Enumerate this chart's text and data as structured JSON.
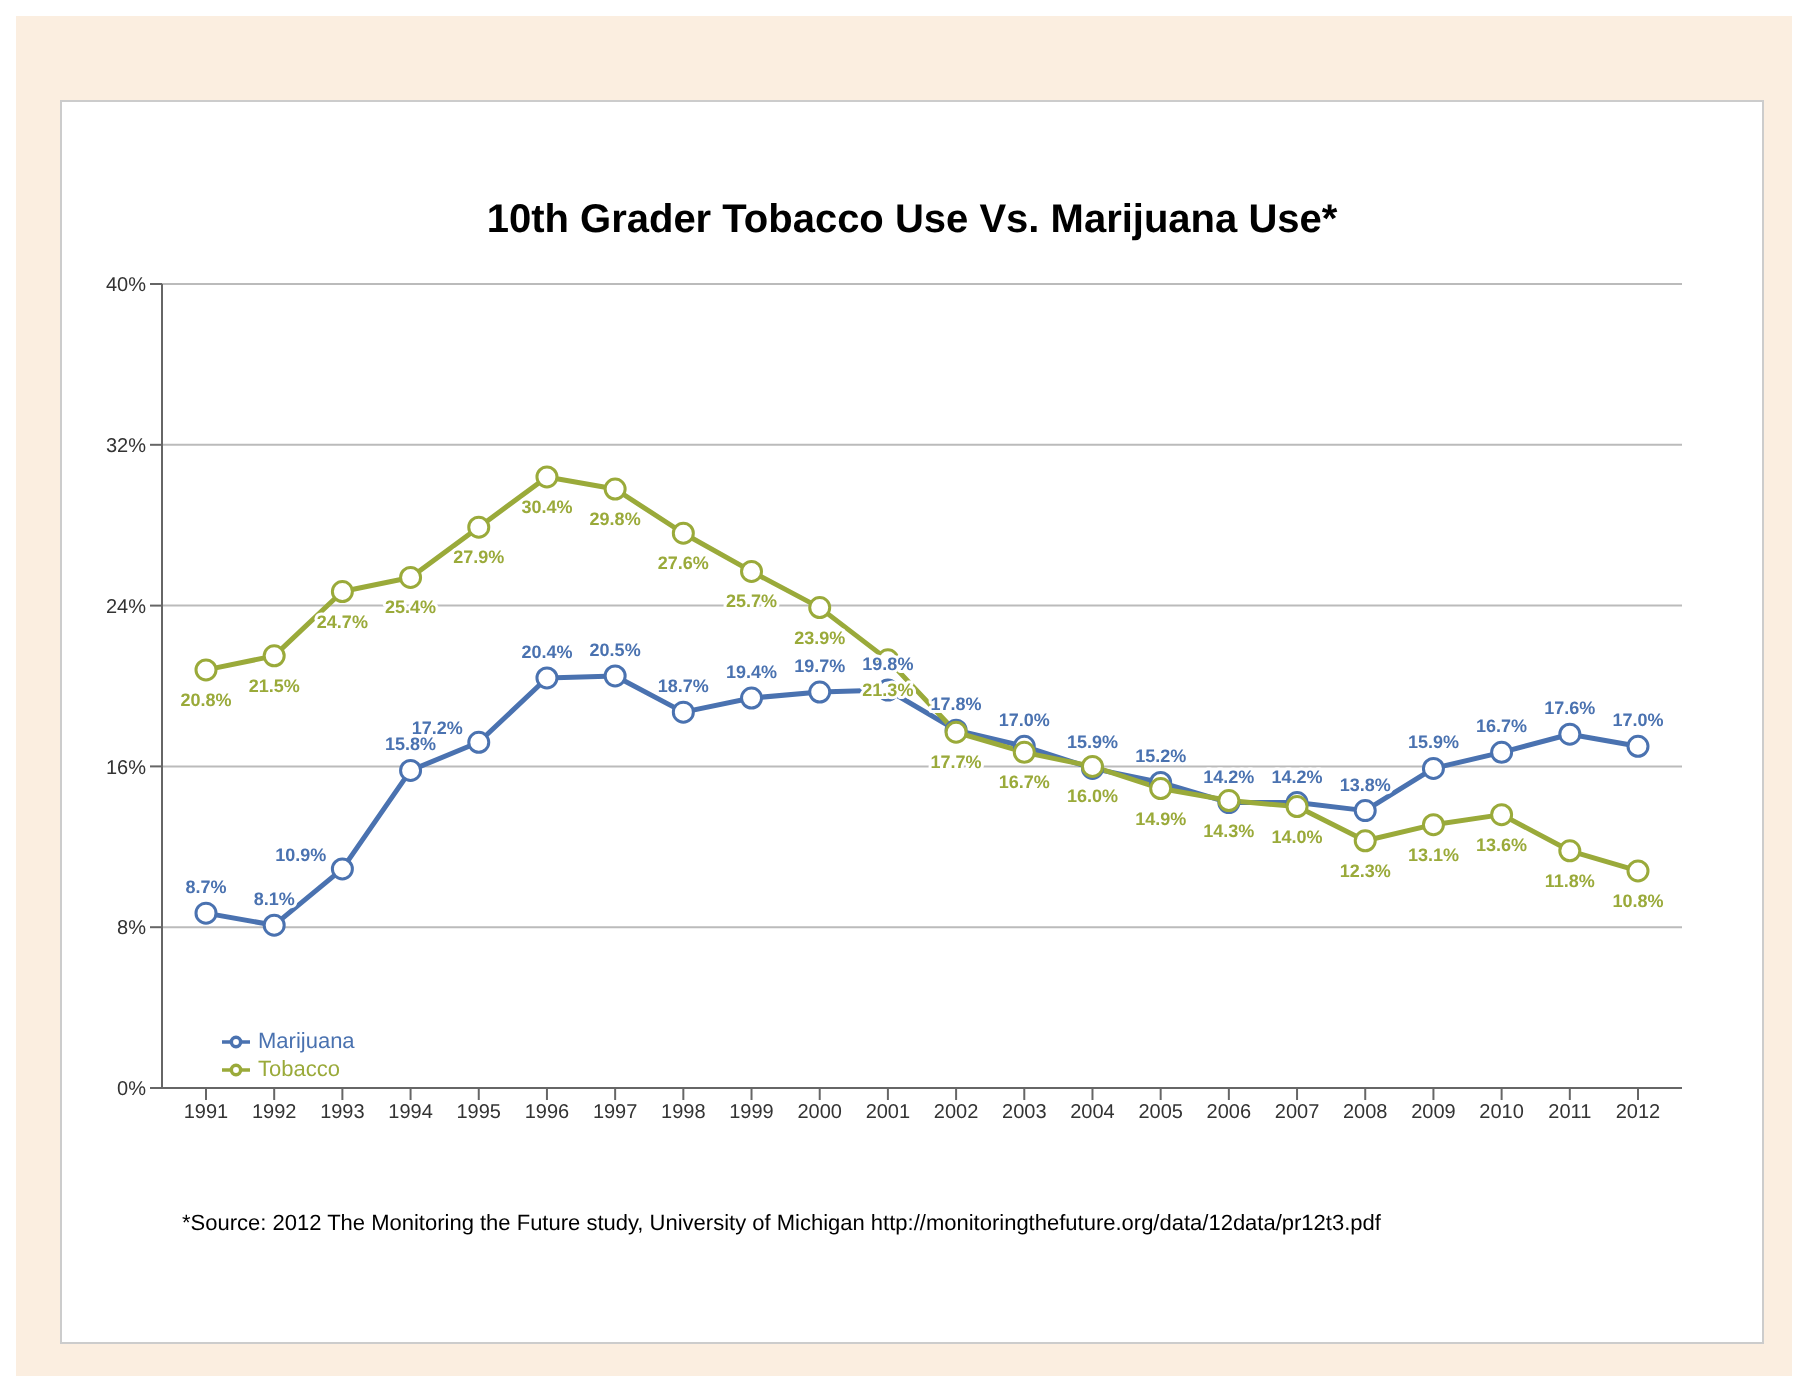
{
  "chart_data": {
    "type": "line",
    "title": "10th Grader Tobacco Use Vs. Marijuana Use*",
    "categories": [
      "1991",
      "1992",
      "1993",
      "1994",
      "1995",
      "1996",
      "1997",
      "1998",
      "1999",
      "2000",
      "2001",
      "2002",
      "2003",
      "2004",
      "2005",
      "2006",
      "2007",
      "2008",
      "2009",
      "2010",
      "2011",
      "2012"
    ],
    "series": [
      {
        "name": "Marijuana",
        "color": "#4a72b0",
        "values": [
          8.7,
          8.1,
          10.9,
          15.8,
          17.2,
          20.4,
          20.5,
          18.7,
          19.4,
          19.7,
          19.8,
          17.8,
          17.0,
          15.9,
          15.2,
          14.2,
          14.2,
          13.8,
          15.9,
          16.7,
          17.6,
          17.0
        ],
        "value_labels": [
          "8.7%",
          "8.1%",
          "10.9%",
          "15.8%",
          "17.2%",
          "20.4%",
          "20.5%",
          "18.7%",
          "19.4%",
          "19.7%",
          "19.8%",
          "17.8%",
          "17.0%",
          "15.9%",
          "15.2%",
          "14.2%",
          "14.2%",
          "13.8%",
          "15.9%",
          "16.7%",
          "17.6%",
          "17.0%"
        ]
      },
      {
        "name": "Tobacco",
        "color": "#9aaa3a",
        "values": [
          20.8,
          21.5,
          24.7,
          25.4,
          27.9,
          30.4,
          29.8,
          27.6,
          25.7,
          23.9,
          21.3,
          17.7,
          16.7,
          16.0,
          14.9,
          14.3,
          14.0,
          12.3,
          13.1,
          13.6,
          11.8,
          10.8
        ],
        "value_labels": [
          "20.8%",
          "21.5%",
          "24.7%",
          "25.4%",
          "27.9%",
          "30.4%",
          "29.8%",
          "27.6%",
          "25.7%",
          "23.9%",
          "21.3%",
          "17.7%",
          "16.7%",
          "16.0%",
          "14.9%",
          "14.3%",
          "14.0%",
          "12.3%",
          "13.1%",
          "13.6%",
          "11.8%",
          "10.8%"
        ]
      }
    ],
    "ylim": [
      0,
      40
    ],
    "yticks": [
      {
        "value": 0,
        "label": "0%"
      },
      {
        "value": 8,
        "label": "8%"
      },
      {
        "value": 16,
        "label": "16%"
      },
      {
        "value": 24,
        "label": "24%"
      },
      {
        "value": 32,
        "label": "32%"
      },
      {
        "value": 40,
        "label": "40%"
      }
    ],
    "grid": "y",
    "legend": "bottom left",
    "marker": "circle",
    "line_style": "solid",
    "annotations": [
      "*Source:  2012 The Monitoring the Future study, University of Michigan http://monitoringthefuture.org/data/12data/pr12t3.pdf"
    ]
  }
}
